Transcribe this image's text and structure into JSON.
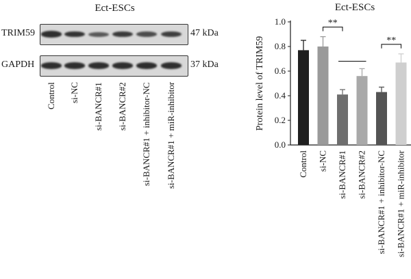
{
  "western_blot": {
    "title": "Ect-ESCs",
    "rows": [
      {
        "label": "TRIM59",
        "size": "47 kDa",
        "intensities": [
          0.85,
          0.8,
          0.5,
          0.75,
          0.6,
          0.72
        ]
      },
      {
        "label": "GAPDH",
        "size": "37 kDa",
        "intensities": [
          0.85,
          0.85,
          0.85,
          0.85,
          0.85,
          0.85
        ]
      }
    ],
    "lanes": [
      "Control",
      "si-NC",
      "si-BANCR#1",
      "si-BANCR#2",
      "si-BANCR#1 + inhibitor-NC",
      "si-BANCR#1 + miR-inhibitor"
    ]
  },
  "chart_data": {
    "type": "bar",
    "title": "Ect-ESCs",
    "ylabel": "Protein level of TRIM59",
    "xlabel": "",
    "categories": [
      "Control",
      "si-NC",
      "si-BANCR#1",
      "si-BANCR#2",
      "si-BANCR#1 + inhibitor-NC",
      "si-BANCR#1 + miR-inhibitor"
    ],
    "values": [
      0.77,
      0.8,
      0.41,
      0.56,
      0.43,
      0.67
    ],
    "errors": [
      0.08,
      0.08,
      0.04,
      0.06,
      0.04,
      0.07
    ],
    "colors": [
      "#1f1f1f",
      "#9a9a9a",
      "#6e6e6e",
      "#a9a9a9",
      "#545454",
      "#cfcfcf"
    ],
    "ylim": [
      0,
      1.0
    ],
    "yticks": [
      "0.0",
      "0.2",
      "0.4",
      "0.6",
      "0.8",
      "1.0"
    ],
    "grid": false,
    "significance": [
      {
        "from": 1,
        "to": 2,
        "label": "**"
      },
      {
        "from": 4,
        "to": 5,
        "label": "**"
      }
    ]
  }
}
